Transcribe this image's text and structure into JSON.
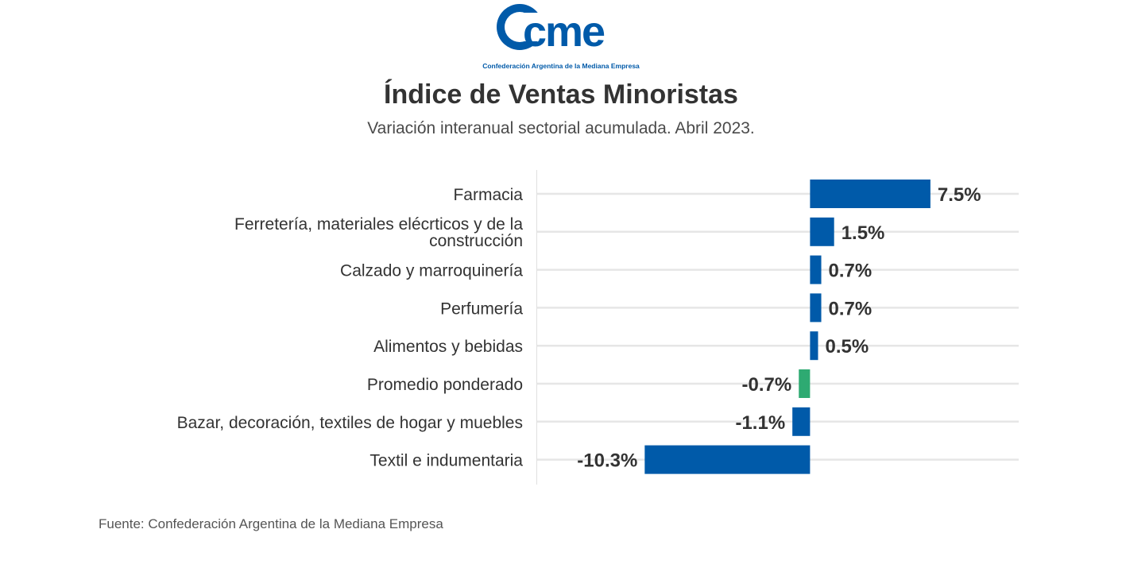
{
  "brand": {
    "logo_text": "cme",
    "tagline": "Confederación Argentina de la Mediana Empresa",
    "color": "#005aa9"
  },
  "header": {
    "title": "Índice de Ventas Minoristas",
    "subtitle": "Variación interanual sectorial acumulada. Abril 2023."
  },
  "footer": {
    "source": "Fuente: Confederación Argentina de la Mediana Empresa"
  },
  "chart_data": {
    "type": "bar",
    "orientation": "horizontal",
    "title": "Índice de Ventas Minoristas",
    "subtitle": "Variación interanual sectorial acumulada. Abril 2023.",
    "categories": [
      [
        "Farmacia"
      ],
      [
        "Ferretería, materiales elécrticos y de la",
        "construcción"
      ],
      [
        "Calzado y marroquinería"
      ],
      [
        "Perfumería"
      ],
      [
        "Alimentos y bebidas"
      ],
      [
        "Promedio ponderado"
      ],
      [
        "Bazar, decoración, textiles de hogar y muebles"
      ],
      [
        "Textil e indumentaria"
      ]
    ],
    "values": [
      7.5,
      1.5,
      0.7,
      0.7,
      0.5,
      -0.7,
      -1.1,
      -10.3
    ],
    "labels": [
      "7.5%",
      "1.5%",
      "0.7%",
      "0.7%",
      "0.5%",
      "-0.7%",
      "-1.1%",
      "-10.3%"
    ],
    "colors": [
      "#005aa9",
      "#005aa9",
      "#005aa9",
      "#005aa9",
      "#005aa9",
      "#2eaa72",
      "#005aa9",
      "#005aa9"
    ],
    "xlim": [
      -17,
      13
    ],
    "grid": true
  }
}
